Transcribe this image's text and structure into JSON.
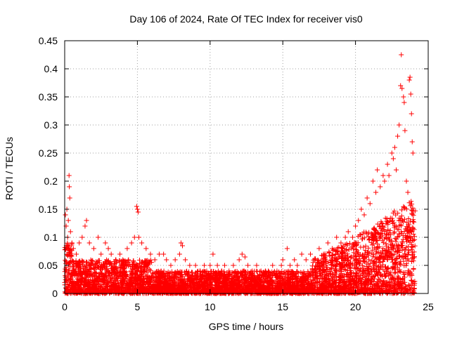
{
  "chart_data": {
    "type": "scatter",
    "title": "Day 106 of 2024, Rate Of TEC Index for receiver vis0",
    "xlabel": "GPS time / hours",
    "ylabel": "ROTI / TECUs",
    "xlim": [
      0,
      25
    ],
    "ylim": [
      0,
      0.45
    ],
    "xticks": [
      0,
      5,
      10,
      15,
      20,
      25
    ],
    "yticks": [
      0,
      0.05,
      0.1,
      0.15,
      0.2,
      0.25,
      0.3,
      0.35,
      0.4,
      0.45
    ],
    "xtick_labels": [
      "0",
      "5",
      "10",
      "15",
      "20",
      "25"
    ],
    "ytick_labels": [
      "0",
      "0.05",
      "0.1",
      "0.15",
      "0.2",
      "0.25",
      "0.3",
      "0.35",
      "0.4",
      "0.45"
    ],
    "grid": true,
    "marker": "+",
    "marker_color": "#ff0000",
    "series": [
      {
        "name": "ROTI",
        "points": [
          [
            0.05,
            0.14
          ],
          [
            0.1,
            0.12
          ],
          [
            0.15,
            0.15
          ],
          [
            0.2,
            0.1
          ],
          [
            0.25,
            0.13
          ],
          [
            0.3,
            0.21
          ],
          [
            0.32,
            0.19
          ],
          [
            0.35,
            0.17
          ],
          [
            0.4,
            0.11
          ],
          [
            0.5,
            0.09
          ],
          [
            0.6,
            0.08
          ],
          [
            0.8,
            0.07
          ],
          [
            1.0,
            0.09
          ],
          [
            1.2,
            0.1
          ],
          [
            1.4,
            0.12
          ],
          [
            1.5,
            0.13
          ],
          [
            1.7,
            0.09
          ],
          [
            2.0,
            0.08
          ],
          [
            2.3,
            0.1
          ],
          [
            2.5,
            0.07
          ],
          [
            2.8,
            0.09
          ],
          [
            3.0,
            0.08
          ],
          [
            3.2,
            0.07
          ],
          [
            3.5,
            0.06
          ],
          [
            3.8,
            0.07
          ],
          [
            4.0,
            0.06
          ],
          [
            4.3,
            0.08
          ],
          [
            4.6,
            0.09
          ],
          [
            4.8,
            0.1
          ],
          [
            4.95,
            0.155
          ],
          [
            5.0,
            0.15
          ],
          [
            5.05,
            0.145
          ],
          [
            5.1,
            0.1
          ],
          [
            5.3,
            0.09
          ],
          [
            5.6,
            0.08
          ],
          [
            5.9,
            0.07
          ],
          [
            6.2,
            0.06
          ],
          [
            6.5,
            0.07
          ],
          [
            6.8,
            0.07
          ],
          [
            7.0,
            0.06
          ],
          [
            7.3,
            0.05
          ],
          [
            7.6,
            0.06
          ],
          [
            7.9,
            0.07
          ],
          [
            8.0,
            0.09
          ],
          [
            8.1,
            0.085
          ],
          [
            8.3,
            0.06
          ],
          [
            8.6,
            0.05
          ],
          [
            9.0,
            0.05
          ],
          [
            9.3,
            0.04
          ],
          [
            9.6,
            0.05
          ],
          [
            10.0,
            0.05
          ],
          [
            10.2,
            0.07
          ],
          [
            10.5,
            0.05
          ],
          [
            10.8,
            0.04
          ],
          [
            11.0,
            0.05
          ],
          [
            11.3,
            0.04
          ],
          [
            11.6,
            0.05
          ],
          [
            12.0,
            0.06
          ],
          [
            12.2,
            0.07
          ],
          [
            12.4,
            0.065
          ],
          [
            12.6,
            0.05
          ],
          [
            12.9,
            0.04
          ],
          [
            13.2,
            0.05
          ],
          [
            13.5,
            0.04
          ],
          [
            13.8,
            0.04
          ],
          [
            14.0,
            0.04
          ],
          [
            14.3,
            0.05
          ],
          [
            14.6,
            0.04
          ],
          [
            14.9,
            0.05
          ],
          [
            15.0,
            0.06
          ],
          [
            15.3,
            0.08
          ],
          [
            15.5,
            0.05
          ],
          [
            15.8,
            0.06
          ],
          [
            16.0,
            0.05
          ],
          [
            16.3,
            0.07
          ],
          [
            16.6,
            0.06
          ],
          [
            16.9,
            0.07
          ],
          [
            17.2,
            0.06
          ],
          [
            17.5,
            0.08
          ],
          [
            17.8,
            0.07
          ],
          [
            18.1,
            0.09
          ],
          [
            18.4,
            0.08
          ],
          [
            18.7,
            0.1
          ],
          [
            19.0,
            0.09
          ],
          [
            19.3,
            0.1
          ],
          [
            19.5,
            0.11
          ],
          [
            19.8,
            0.1
          ],
          [
            20.0,
            0.12
          ],
          [
            20.2,
            0.13
          ],
          [
            20.4,
            0.15
          ],
          [
            20.6,
            0.14
          ],
          [
            20.8,
            0.17
          ],
          [
            21.0,
            0.16
          ],
          [
            21.2,
            0.2
          ],
          [
            21.4,
            0.18
          ],
          [
            21.5,
            0.22
          ],
          [
            21.7,
            0.19
          ],
          [
            21.9,
            0.21
          ],
          [
            22.0,
            0.2
          ],
          [
            22.2,
            0.23
          ],
          [
            22.3,
            0.21
          ],
          [
            22.5,
            0.25
          ],
          [
            22.6,
            0.24
          ],
          [
            22.7,
            0.26
          ],
          [
            22.8,
            0.22
          ],
          [
            22.9,
            0.28
          ],
          [
            23.0,
            0.3
          ],
          [
            23.1,
            0.37
          ],
          [
            23.15,
            0.425
          ],
          [
            23.2,
            0.365
          ],
          [
            23.3,
            0.35
          ],
          [
            23.35,
            0.34
          ],
          [
            23.4,
            0.29
          ],
          [
            23.5,
            0.2
          ],
          [
            23.6,
            0.18
          ],
          [
            23.7,
            0.38
          ],
          [
            23.75,
            0.385
          ],
          [
            23.8,
            0.355
          ],
          [
            23.85,
            0.32
          ],
          [
            23.9,
            0.27
          ],
          [
            23.95,
            0.25
          ]
        ]
      }
    ]
  }
}
